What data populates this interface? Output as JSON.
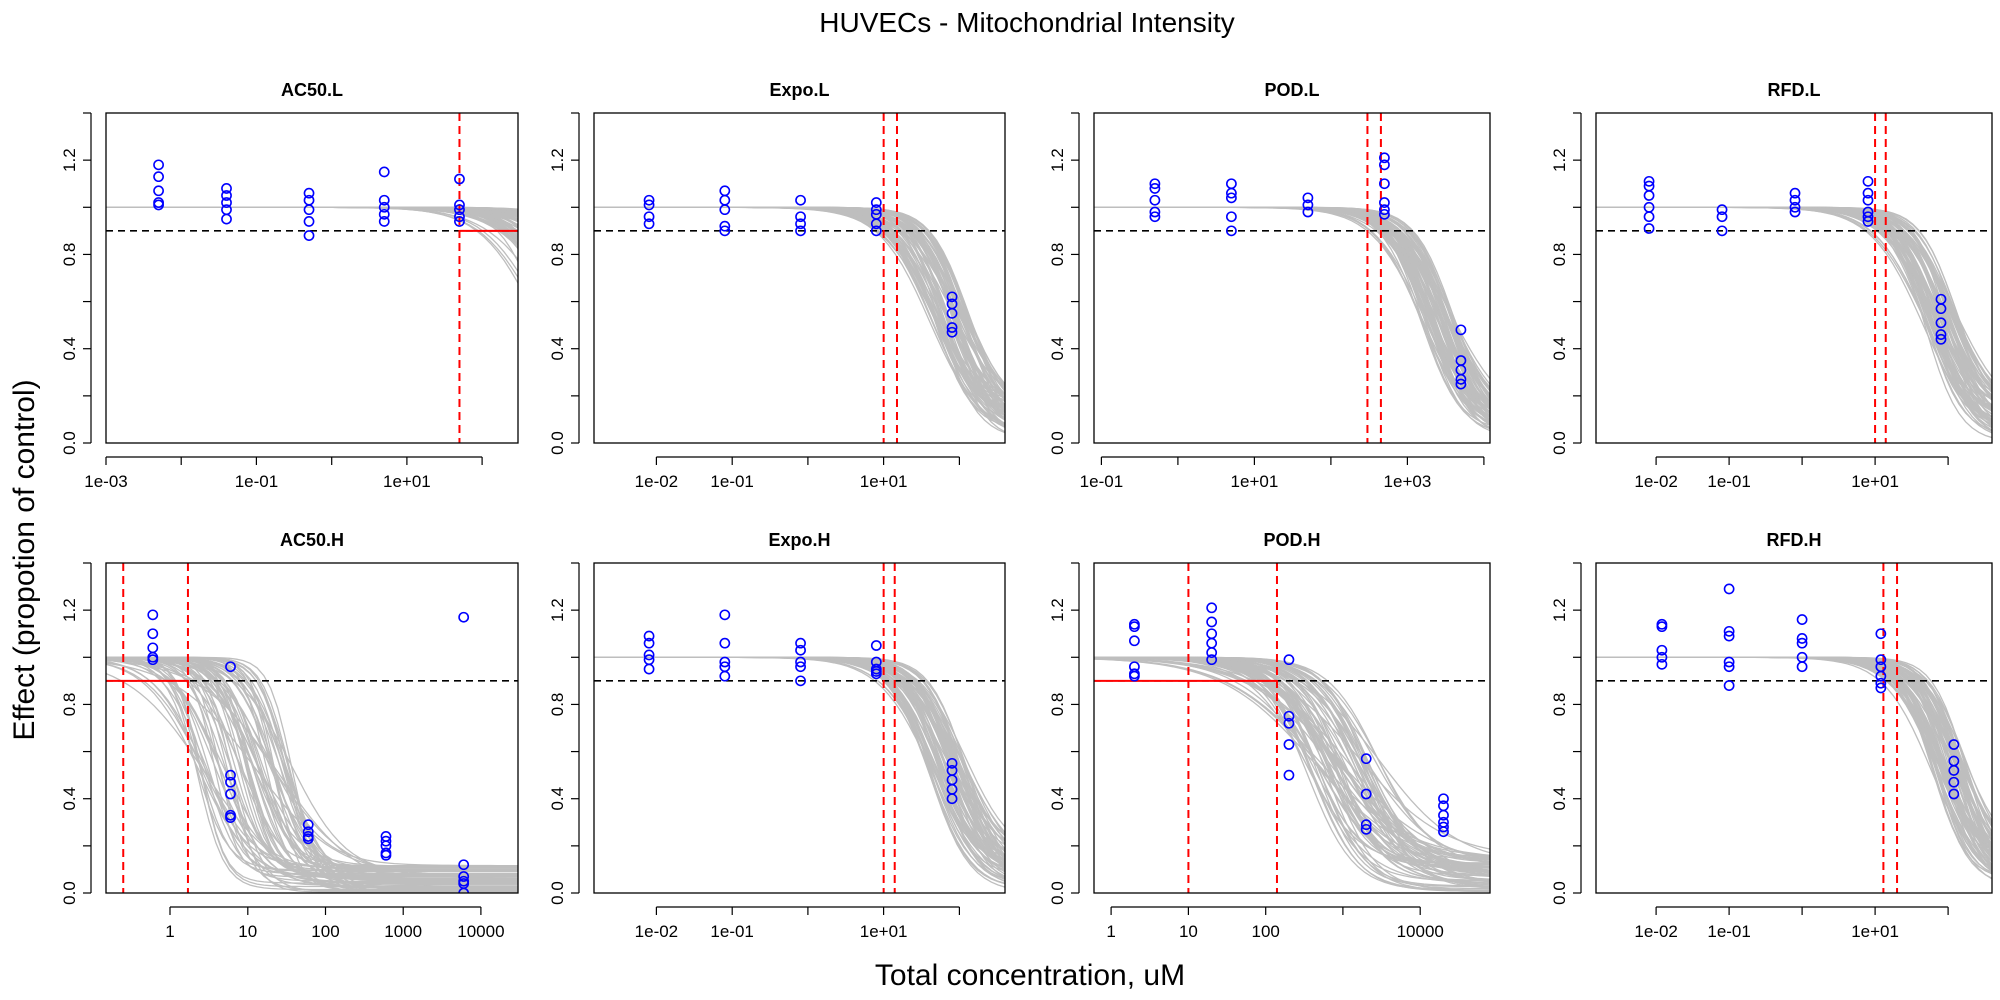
{
  "title": "HUVECs -  Mitochondrial Intensity",
  "xlabel": "Total concentration, uM",
  "ylabel": "Effect (propotion of control)",
  "colors": {
    "points": "#0000ff",
    "curves": "#bebebe",
    "threshold": "#000000",
    "pod_lines": "#ff0000"
  },
  "chart_data": [
    {
      "type": "scatter",
      "title": "AC50.L",
      "x_scale": "log",
      "xlim": [
        0.001,
        300
      ],
      "ylim": [
        0,
        1.4
      ],
      "y_ticks": [
        "0.0",
        "0.4",
        "0.8",
        "1.2"
      ],
      "x_ticks": [
        {
          "value": 0.001,
          "label": "1e-03"
        },
        {
          "value": 0.1,
          "label": "1e-01"
        },
        {
          "value": 10,
          "label": "1e+01"
        }
      ],
      "threshold": 0.9,
      "points": [
        {
          "x": 0.005,
          "y": [
            1.18,
            1.13,
            1.07,
            1.02,
            1.01
          ]
        },
        {
          "x": 0.04,
          "y": [
            1.08,
            1.05,
            1.02,
            0.99,
            0.95
          ]
        },
        {
          "x": 0.5,
          "y": [
            1.06,
            1.03,
            0.99,
            0.94,
            0.88
          ]
        },
        {
          "x": 5,
          "y": [
            1.15,
            1.03,
            1.0,
            0.97,
            0.94
          ]
        },
        {
          "x": 50,
          "y": [
            1.12,
            1.01,
            0.99,
            0.96,
            0.94
          ]
        }
      ],
      "curve_band": {
        "top": 1.0,
        "ec50": [
          500,
          8000
        ],
        "hill": [
          1.0,
          1.6
        ],
        "floor": [
          0.0,
          0.3
        ]
      },
      "pod": {
        "lower": 50,
        "upper": null
      },
      "horizontal_from_lower": true
    },
    {
      "type": "scatter",
      "title": "Expo.L",
      "x_scale": "log",
      "xlim": [
        0.0015,
        400
      ],
      "ylim": [
        0,
        1.4
      ],
      "y_ticks": [
        "0.0",
        "0.4",
        "0.8",
        "1.2"
      ],
      "x_ticks": [
        {
          "value": 0.01,
          "label": "1e-02"
        },
        {
          "value": 0.1,
          "label": "1e-01"
        },
        {
          "value": 10,
          "label": "1e+01"
        }
      ],
      "threshold": 0.9,
      "points": [
        {
          "x": 0.008,
          "y": [
            1.03,
            1.01,
            0.96,
            0.93
          ]
        },
        {
          "x": 0.08,
          "y": [
            1.07,
            1.03,
            0.99,
            0.92,
            0.9
          ]
        },
        {
          "x": 0.8,
          "y": [
            1.03,
            0.96,
            0.93,
            0.9
          ]
        },
        {
          "x": 8,
          "y": [
            1.02,
            0.99,
            0.97,
            0.93,
            0.9
          ]
        },
        {
          "x": 80,
          "y": [
            0.62,
            0.59,
            0.55,
            0.49,
            0.47
          ]
        }
      ],
      "curve_band": {
        "top": 1.0,
        "ec50": [
          40,
          130
        ],
        "hill": [
          1.2,
          1.9
        ],
        "floor": [
          0.0,
          0.15
        ]
      },
      "pod": {
        "lower": 10,
        "upper": 15
      },
      "horizontal_from_lower": false
    },
    {
      "type": "scatter",
      "title": "POD.L",
      "x_scale": "log",
      "xlim": [
        0.08,
        12000
      ],
      "ylim": [
        0,
        1.4
      ],
      "y_ticks": [
        "0.0",
        "0.4",
        "0.8",
        "1.2"
      ],
      "x_ticks": [
        {
          "value": 0.1,
          "label": "1e-01"
        },
        {
          "value": 10,
          "label": "1e+01"
        },
        {
          "value": 1000,
          "label": "1e+03"
        }
      ],
      "threshold": 0.9,
      "points": [
        {
          "x": 0.5,
          "y": [
            1.1,
            1.08,
            1.03,
            0.98,
            0.96
          ]
        },
        {
          "x": 5,
          "y": [
            1.1,
            1.06,
            1.04,
            0.96,
            0.9
          ]
        },
        {
          "x": 50,
          "y": [
            1.04,
            1.01,
            0.98
          ]
        },
        {
          "x": 500,
          "y": [
            1.21,
            1.18,
            1.1,
            1.02,
            0.99,
            0.97
          ]
        },
        {
          "x": 5000,
          "y": [
            0.48,
            0.35,
            0.31,
            0.27,
            0.25
          ]
        }
      ],
      "curve_band": {
        "top": 1.0,
        "ec50": [
          1500,
          4000
        ],
        "hill": [
          1.2,
          1.8
        ],
        "floor": [
          0.0,
          0.1
        ]
      },
      "pod": {
        "lower": 300,
        "upper": 450
      },
      "horizontal_from_lower": false
    },
    {
      "type": "scatter",
      "title": "RFD.L",
      "x_scale": "log",
      "xlim": [
        0.0015,
        400
      ],
      "ylim": [
        0,
        1.4
      ],
      "y_ticks": [
        "0.0",
        "0.4",
        "0.8",
        "1.2"
      ],
      "x_ticks": [
        {
          "value": 0.01,
          "label": "1e-02"
        },
        {
          "value": 0.1,
          "label": "1e-01"
        },
        {
          "value": 10,
          "label": "1e+01"
        }
      ],
      "threshold": 0.9,
      "points": [
        {
          "x": 0.008,
          "y": [
            1.11,
            1.09,
            1.05,
            1.0,
            0.96,
            0.91
          ]
        },
        {
          "x": 0.08,
          "y": [
            0.99,
            0.96,
            0.9
          ]
        },
        {
          "x": 0.8,
          "y": [
            1.06,
            1.03,
            1.0,
            0.98
          ]
        },
        {
          "x": 8,
          "y": [
            1.11,
            1.06,
            1.03,
            0.98,
            0.96,
            0.94
          ]
        },
        {
          "x": 80,
          "y": [
            0.61,
            0.57,
            0.51,
            0.46,
            0.44
          ]
        }
      ],
      "curve_band": {
        "top": 1.0,
        "ec50": [
          45,
          140
        ],
        "hill": [
          1.2,
          1.9
        ],
        "floor": [
          0.0,
          0.15
        ]
      },
      "pod": {
        "lower": 10,
        "upper": 14
      },
      "horizontal_from_lower": false
    },
    {
      "type": "scatter",
      "title": "AC50.H",
      "x_scale": "log",
      "xlim": [
        0.15,
        30000
      ],
      "ylim": [
        0,
        1.4
      ],
      "y_ticks": [
        "0.0",
        "0.4",
        "0.8",
        "1.2"
      ],
      "x_ticks": [
        {
          "value": 1,
          "label": "1"
        },
        {
          "value": 10,
          "label": "10"
        },
        {
          "value": 100,
          "label": "100"
        },
        {
          "value": 1000,
          "label": "1000"
        },
        {
          "value": 10000,
          "label": "10000"
        }
      ],
      "threshold": 0.9,
      "points": [
        {
          "x": 0.6,
          "y": [
            1.18,
            1.1,
            1.04,
            1.0,
            0.99
          ]
        },
        {
          "x": 6,
          "y": [
            0.96,
            0.5,
            0.47,
            0.42,
            0.33,
            0.32
          ]
        },
        {
          "x": 60,
          "y": [
            0.29,
            0.26,
            0.24,
            0.23
          ]
        },
        {
          "x": 600,
          "y": [
            0.24,
            0.22,
            0.2,
            0.17,
            0.16
          ]
        },
        {
          "x": 6000,
          "y": [
            1.17,
            0.12,
            0.07,
            0.05,
            0.04,
            0.0
          ]
        }
      ],
      "curve_band": {
        "top": 1.0,
        "ec50": [
          2,
          40
        ],
        "hill": [
          0.8,
          3.0
        ],
        "floor": [
          0.0,
          0.12
        ]
      },
      "pod": {
        "lower": 0.25,
        "upper": 1.7
      },
      "horizontal_from_lower": true
    },
    {
      "type": "scatter",
      "title": "Expo.H",
      "x_scale": "log",
      "xlim": [
        0.0015,
        400
      ],
      "ylim": [
        0,
        1.4
      ],
      "y_ticks": [
        "0.0",
        "0.4",
        "0.8",
        "1.2"
      ],
      "x_ticks": [
        {
          "value": 0.01,
          "label": "1e-02"
        },
        {
          "value": 0.1,
          "label": "1e-01"
        },
        {
          "value": 10,
          "label": "1e+01"
        }
      ],
      "threshold": 0.9,
      "points": [
        {
          "x": 0.008,
          "y": [
            1.09,
            1.06,
            1.01,
            0.99,
            0.95
          ]
        },
        {
          "x": 0.08,
          "y": [
            1.18,
            1.06,
            0.98,
            0.96,
            0.92
          ]
        },
        {
          "x": 0.8,
          "y": [
            1.06,
            1.03,
            0.98,
            0.96,
            0.9
          ]
        },
        {
          "x": 8,
          "y": [
            1.05,
            0.98,
            0.95,
            0.94,
            0.93
          ]
        },
        {
          "x": 80,
          "y": [
            0.55,
            0.52,
            0.48,
            0.44,
            0.4
          ]
        }
      ],
      "curve_band": {
        "top": 1.0,
        "ec50": [
          40,
          130
        ],
        "hill": [
          1.2,
          1.9
        ],
        "floor": [
          0.0,
          0.15
        ]
      },
      "pod": {
        "lower": 10,
        "upper": 14
      },
      "horizontal_from_lower": false
    },
    {
      "type": "scatter",
      "title": "POD.H",
      "x_scale": "log",
      "xlim": [
        0.6,
        80000
      ],
      "ylim": [
        0,
        1.4
      ],
      "y_ticks": [
        "0.0",
        "0.4",
        "0.8",
        "1.2"
      ],
      "x_ticks": [
        {
          "value": 1,
          "label": "1"
        },
        {
          "value": 10,
          "label": "10"
        },
        {
          "value": 100,
          "label": "100"
        },
        {
          "value": 10000,
          "label": "10000"
        }
      ],
      "threshold": 0.9,
      "points": [
        {
          "x": 2,
          "y": [
            1.14,
            1.13,
            1.07,
            0.96,
            0.93,
            0.92
          ]
        },
        {
          "x": 20,
          "y": [
            1.21,
            1.15,
            1.1,
            1.06,
            1.02,
            0.99
          ]
        },
        {
          "x": 200,
          "y": [
            0.99,
            0.75,
            0.72,
            0.63,
            0.5
          ]
        },
        {
          "x": 2000,
          "y": [
            0.57,
            0.42,
            0.29,
            0.27
          ]
        },
        {
          "x": 20000,
          "y": [
            0.4,
            0.37,
            0.33,
            0.3,
            0.28,
            0.26
          ]
        }
      ],
      "curve_band": {
        "top": 1.0,
        "ec50": [
          300,
          3000
        ],
        "hill": [
          0.7,
          1.6
        ],
        "floor": [
          0.0,
          0.15
        ]
      },
      "pod": {
        "lower": 10,
        "upper": 140
      },
      "horizontal_from_lower": true
    },
    {
      "type": "scatter",
      "title": "RFD.H",
      "x_scale": "log",
      "xlim": [
        0.0015,
        400
      ],
      "ylim": [
        0,
        1.4
      ],
      "y_ticks": [
        "0.0",
        "0.4",
        "0.8",
        "1.2"
      ],
      "x_ticks": [
        {
          "value": 0.01,
          "label": "1e-02"
        },
        {
          "value": 0.1,
          "label": "1e-01"
        },
        {
          "value": 10,
          "label": "1e+01"
        }
      ],
      "threshold": 0.9,
      "points": [
        {
          "x": 0.012,
          "y": [
            1.14,
            1.13,
            1.03,
            1.0,
            0.97
          ]
        },
        {
          "x": 0.1,
          "y": [
            1.29,
            1.11,
            1.09,
            0.98,
            0.96,
            0.88
          ]
        },
        {
          "x": 1,
          "y": [
            1.16,
            1.08,
            1.06,
            1.0,
            0.96
          ]
        },
        {
          "x": 12,
          "y": [
            1.1,
            0.99,
            0.96,
            0.92,
            0.89,
            0.87
          ]
        },
        {
          "x": 120,
          "y": [
            0.63,
            0.56,
            0.52,
            0.47,
            0.42
          ]
        }
      ],
      "curve_band": {
        "top": 1.0,
        "ec50": [
          60,
          180
        ],
        "hill": [
          1.3,
          2.0
        ],
        "floor": [
          0.0,
          0.15
        ]
      },
      "pod": {
        "lower": 13,
        "upper": 20
      },
      "horizontal_from_lower": false
    }
  ]
}
